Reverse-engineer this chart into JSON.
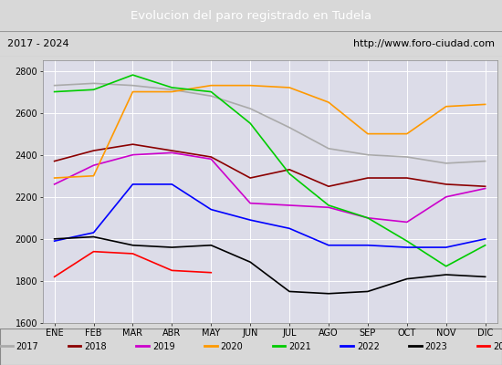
{
  "title": "Evolucion del paro registrado en Tudela",
  "subtitle_left": "2017 - 2024",
  "subtitle_right": "http://www.foro-ciudad.com",
  "months": [
    "ENE",
    "FEB",
    "MAR",
    "ABR",
    "MAY",
    "JUN",
    "JUL",
    "AGO",
    "SEP",
    "OCT",
    "NOV",
    "DIC"
  ],
  "series": {
    "2017": [
      2730,
      2740,
      2730,
      2710,
      2680,
      2620,
      2530,
      2430,
      2400,
      2390,
      2360,
      2370
    ],
    "2018": [
      2370,
      2420,
      2450,
      2420,
      2390,
      2290,
      2330,
      2250,
      2290,
      2290,
      2260,
      2250
    ],
    "2019": [
      2260,
      2350,
      2400,
      2410,
      2380,
      2170,
      2160,
      2150,
      2100,
      2080,
      2200,
      2240
    ],
    "2020": [
      2290,
      2300,
      2700,
      2700,
      2730,
      2730,
      2720,
      2650,
      2500,
      2500,
      2630,
      2640
    ],
    "2021": [
      2700,
      2710,
      2780,
      2720,
      2700,
      2550,
      2310,
      2160,
      2100,
      1990,
      1870,
      1970
    ],
    "2022": [
      1990,
      2030,
      2260,
      2260,
      2140,
      2090,
      2050,
      1970,
      1970,
      1960,
      1960,
      2000
    ],
    "2023": [
      2000,
      2010,
      1970,
      1960,
      1970,
      1890,
      1750,
      1740,
      1750,
      1810,
      1830,
      1820
    ],
    "2024": [
      1820,
      1940,
      1930,
      1850,
      1840,
      null,
      null,
      null,
      null,
      null,
      null,
      null
    ]
  },
  "colors": {
    "2017": "#aaaaaa",
    "2018": "#8b0000",
    "2019": "#cc00cc",
    "2020": "#ff9900",
    "2021": "#00cc00",
    "2022": "#0000ff",
    "2023": "#000000",
    "2024": "#ff0000"
  },
  "ylim": [
    1600,
    2850
  ],
  "yticks": [
    1600,
    1800,
    2000,
    2200,
    2400,
    2600,
    2800
  ],
  "bg_color": "#d8d8d8",
  "plot_bg_color": "#dcdce8",
  "title_bg_color": "#4878c0",
  "title_color": "#ffffff",
  "header_bg_color": "#d0d0d0",
  "legend_bg_color": "#f0f0f0"
}
